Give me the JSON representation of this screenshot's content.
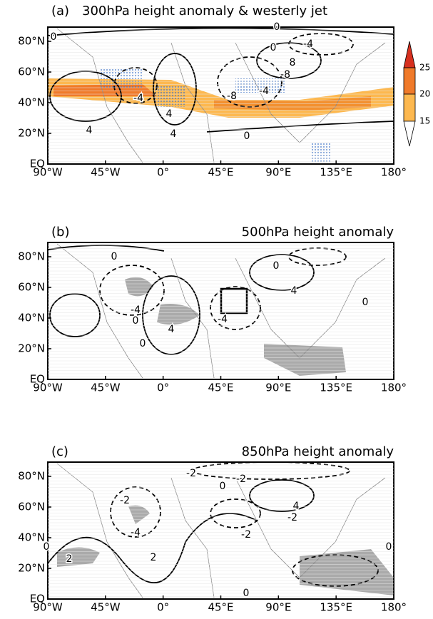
{
  "panels": [
    {
      "label": "(a)",
      "title": "300hPa height anomaly & westerly jet",
      "yticks": [
        "80°N",
        "60°N",
        "40°N",
        "20°N",
        "EQ"
      ],
      "xticks": [
        "90°W",
        "45°W",
        "0°",
        "45°E",
        "90°E",
        "135°E",
        "180°"
      ],
      "contour_labels": [
        "0",
        "0",
        "0",
        "-4",
        "8",
        "-8",
        "-4",
        "-8",
        "0",
        "4",
        "-4",
        "4",
        "4"
      ]
    },
    {
      "label": "(b)",
      "title": "500hPa height anomaly",
      "yticks": [
        "80°N",
        "60°N",
        "40°N",
        "20°N",
        "EQ"
      ],
      "xticks": [
        "90°W",
        "45°W",
        "0°",
        "45°E",
        "90°E",
        "135°E",
        "180°"
      ],
      "contour_labels": [
        "0",
        "0",
        "-4",
        "0",
        "4",
        "0",
        "-4",
        "4",
        "0"
      ]
    },
    {
      "label": "(c)",
      "title": "850hPa height anomaly",
      "yticks": [
        "80°N",
        "60°N",
        "40°N",
        "20°N",
        "EQ"
      ],
      "xticks": [
        "90°W",
        "45°W",
        "0°",
        "45°E",
        "90°E",
        "135°E",
        "180°"
      ],
      "contour_labels": [
        "-2",
        "-2",
        "0",
        "-2",
        "-4",
        "4",
        "-2",
        "-2",
        "2",
        "2",
        "0",
        "0",
        "0"
      ]
    }
  ],
  "colorbar": {
    "labels": [
      "25",
      "20",
      "15"
    ]
  }
}
